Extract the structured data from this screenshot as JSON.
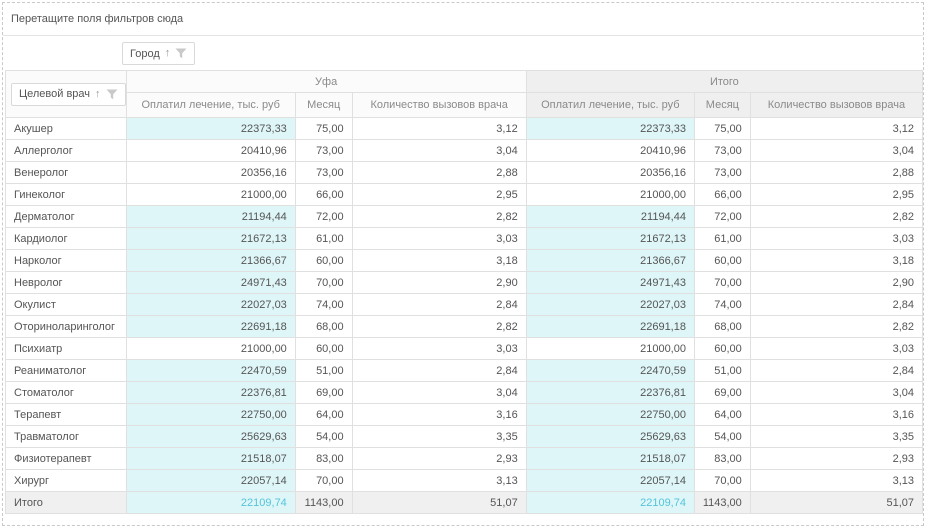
{
  "filter_zone": {
    "hint": "Перетащите поля фильтров сюда"
  },
  "column_field_chip": {
    "label": "Город",
    "sort_icon": "arrow-up",
    "filter_icon": "funnel"
  },
  "row_field_chip": {
    "label": "Целевой врач",
    "sort_icon": "arrow-up",
    "filter_icon": "funnel"
  },
  "colors": {
    "highlight_bg": "#dff6f9",
    "highlight_text": "#53c4d8",
    "header_bg": "#fbfbfb",
    "total_header_bg": "#efefef",
    "total_row_bg": "#f0f0f0",
    "border": "#e0e0e0"
  },
  "table": {
    "column_groups": [
      {
        "label": "Уфа",
        "is_total": false,
        "measures": [
          "Оплатил лечение, тыс. руб",
          "Месяц",
          "Количество вызовов врача"
        ]
      },
      {
        "label": "Итого",
        "is_total": true,
        "measures": [
          "Оплатил лечение, тыс. руб",
          "Месяц",
          "Количество вызовов врача"
        ]
      }
    ],
    "rows": [
      {
        "label": "Акушер",
        "is_total": false,
        "highlight": true,
        "ufa": {
          "paid": "22373,33",
          "month": "75,00",
          "calls": "3,12"
        },
        "total": {
          "paid": "22373,33",
          "month": "75,00",
          "calls": "3,12"
        }
      },
      {
        "label": "Аллерголог",
        "is_total": false,
        "highlight": false,
        "ufa": {
          "paid": "20410,96",
          "month": "73,00",
          "calls": "3,04"
        },
        "total": {
          "paid": "20410,96",
          "month": "73,00",
          "calls": "3,04"
        }
      },
      {
        "label": "Венеролог",
        "is_total": false,
        "highlight": false,
        "ufa": {
          "paid": "20356,16",
          "month": "73,00",
          "calls": "2,88"
        },
        "total": {
          "paid": "20356,16",
          "month": "73,00",
          "calls": "2,88"
        }
      },
      {
        "label": "Гинеколог",
        "is_total": false,
        "highlight": false,
        "ufa": {
          "paid": "21000,00",
          "month": "66,00",
          "calls": "2,95"
        },
        "total": {
          "paid": "21000,00",
          "month": "66,00",
          "calls": "2,95"
        }
      },
      {
        "label": "Дерматолог",
        "is_total": false,
        "highlight": true,
        "ufa": {
          "paid": "21194,44",
          "month": "72,00",
          "calls": "2,82"
        },
        "total": {
          "paid": "21194,44",
          "month": "72,00",
          "calls": "2,82"
        }
      },
      {
        "label": "Кардиолог",
        "is_total": false,
        "highlight": true,
        "ufa": {
          "paid": "21672,13",
          "month": "61,00",
          "calls": "3,03"
        },
        "total": {
          "paid": "21672,13",
          "month": "61,00",
          "calls": "3,03"
        }
      },
      {
        "label": "Нарколог",
        "is_total": false,
        "highlight": true,
        "ufa": {
          "paid": "21366,67",
          "month": "60,00",
          "calls": "3,18"
        },
        "total": {
          "paid": "21366,67",
          "month": "60,00",
          "calls": "3,18"
        }
      },
      {
        "label": "Невролог",
        "is_total": false,
        "highlight": true,
        "ufa": {
          "paid": "24971,43",
          "month": "70,00",
          "calls": "2,90"
        },
        "total": {
          "paid": "24971,43",
          "month": "70,00",
          "calls": "2,90"
        }
      },
      {
        "label": "Окулист",
        "is_total": false,
        "highlight": true,
        "ufa": {
          "paid": "22027,03",
          "month": "74,00",
          "calls": "2,84"
        },
        "total": {
          "paid": "22027,03",
          "month": "74,00",
          "calls": "2,84"
        }
      },
      {
        "label": "Оториноларинголог",
        "is_total": false,
        "highlight": true,
        "ufa": {
          "paid": "22691,18",
          "month": "68,00",
          "calls": "2,82"
        },
        "total": {
          "paid": "22691,18",
          "month": "68,00",
          "calls": "2,82"
        }
      },
      {
        "label": "Психиатр",
        "is_total": false,
        "highlight": false,
        "ufa": {
          "paid": "21000,00",
          "month": "60,00",
          "calls": "3,03"
        },
        "total": {
          "paid": "21000,00",
          "month": "60,00",
          "calls": "3,03"
        }
      },
      {
        "label": "Реаниматолог",
        "is_total": false,
        "highlight": true,
        "ufa": {
          "paid": "22470,59",
          "month": "51,00",
          "calls": "2,84"
        },
        "total": {
          "paid": "22470,59",
          "month": "51,00",
          "calls": "2,84"
        }
      },
      {
        "label": "Стоматолог",
        "is_total": false,
        "highlight": true,
        "ufa": {
          "paid": "22376,81",
          "month": "69,00",
          "calls": "3,04"
        },
        "total": {
          "paid": "22376,81",
          "month": "69,00",
          "calls": "3,04"
        }
      },
      {
        "label": "Терапевт",
        "is_total": false,
        "highlight": true,
        "ufa": {
          "paid": "22750,00",
          "month": "64,00",
          "calls": "3,16"
        },
        "total": {
          "paid": "22750,00",
          "month": "64,00",
          "calls": "3,16"
        }
      },
      {
        "label": "Травматолог",
        "is_total": false,
        "highlight": true,
        "ufa": {
          "paid": "25629,63",
          "month": "54,00",
          "calls": "3,35"
        },
        "total": {
          "paid": "25629,63",
          "month": "54,00",
          "calls": "3,35"
        }
      },
      {
        "label": "Физиотерапевт",
        "is_total": false,
        "highlight": true,
        "ufa": {
          "paid": "21518,07",
          "month": "83,00",
          "calls": "2,93"
        },
        "total": {
          "paid": "21518,07",
          "month": "83,00",
          "calls": "2,93"
        }
      },
      {
        "label": "Хирург",
        "is_total": false,
        "highlight": true,
        "ufa": {
          "paid": "22057,14",
          "month": "70,00",
          "calls": "3,13"
        },
        "total": {
          "paid": "22057,14",
          "month": "70,00",
          "calls": "3,13"
        }
      },
      {
        "label": "Итого",
        "is_total": true,
        "highlight": true,
        "ufa": {
          "paid": "22109,74",
          "month": "1143,00",
          "calls": "51,07"
        },
        "total": {
          "paid": "22109,74",
          "month": "1143,00",
          "calls": "51,07"
        }
      }
    ]
  }
}
